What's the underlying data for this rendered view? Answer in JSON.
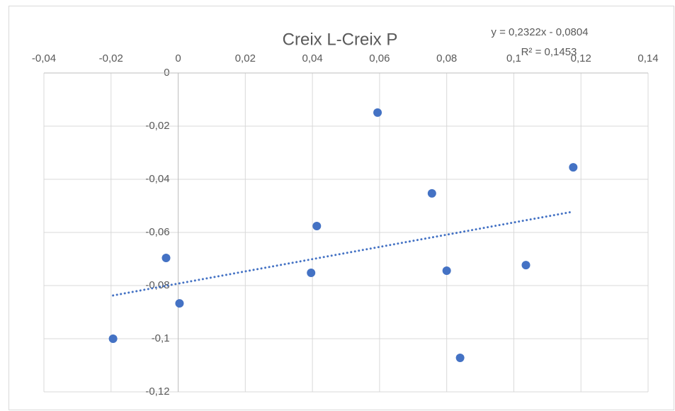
{
  "chart_data": {
    "type": "scatter",
    "title": "Creix L-Creix P",
    "annotations": [
      "y = 0,2322x - 0,0804",
      "R² = 0,1453"
    ],
    "x": [
      -0.0194,
      -0.0036,
      0.0004,
      0.0396,
      0.0413,
      0.0594,
      0.0756,
      0.08,
      0.084,
      0.1036,
      0.1177
    ],
    "values": [
      -0.1,
      -0.0696,
      -0.0867,
      -0.0752,
      -0.0576,
      -0.0149,
      -0.0453,
      -0.0744,
      -0.1072,
      -0.0723,
      -0.0355
    ],
    "color": "#4472c4",
    "trendline": true,
    "grid": true,
    "xlim": [
      -0.04,
      0.14
    ],
    "xticks": [
      {
        "value": -0.04,
        "label": "-0,04"
      },
      {
        "value": -0.02,
        "label": "-0,02"
      },
      0,
      {
        "value": 0.02,
        "label": "0,02"
      },
      {
        "value": 0.04,
        "label": "0,04"
      },
      {
        "value": 0.06,
        "label": "0,06"
      },
      {
        "value": 0.08,
        "label": "0,08"
      },
      {
        "value": 0.1,
        "label": "0,1"
      },
      {
        "value": 0.12,
        "label": "0,12"
      },
      {
        "value": 0.14,
        "label": "0,14"
      }
    ],
    "ylim": [
      -0.12,
      0
    ],
    "yticks": [
      {
        "value": -0.12,
        "label": "-0,12"
      },
      {
        "value": -0.1,
        "label": "-0,1"
      },
      {
        "value": -0.08,
        "label": "-0,08"
      },
      {
        "value": -0.06,
        "label": "-0,06"
      },
      {
        "value": -0.04,
        "label": "-0,04"
      },
      {
        "value": -0.02,
        "label": "-0,02"
      },
      0
    ]
  }
}
